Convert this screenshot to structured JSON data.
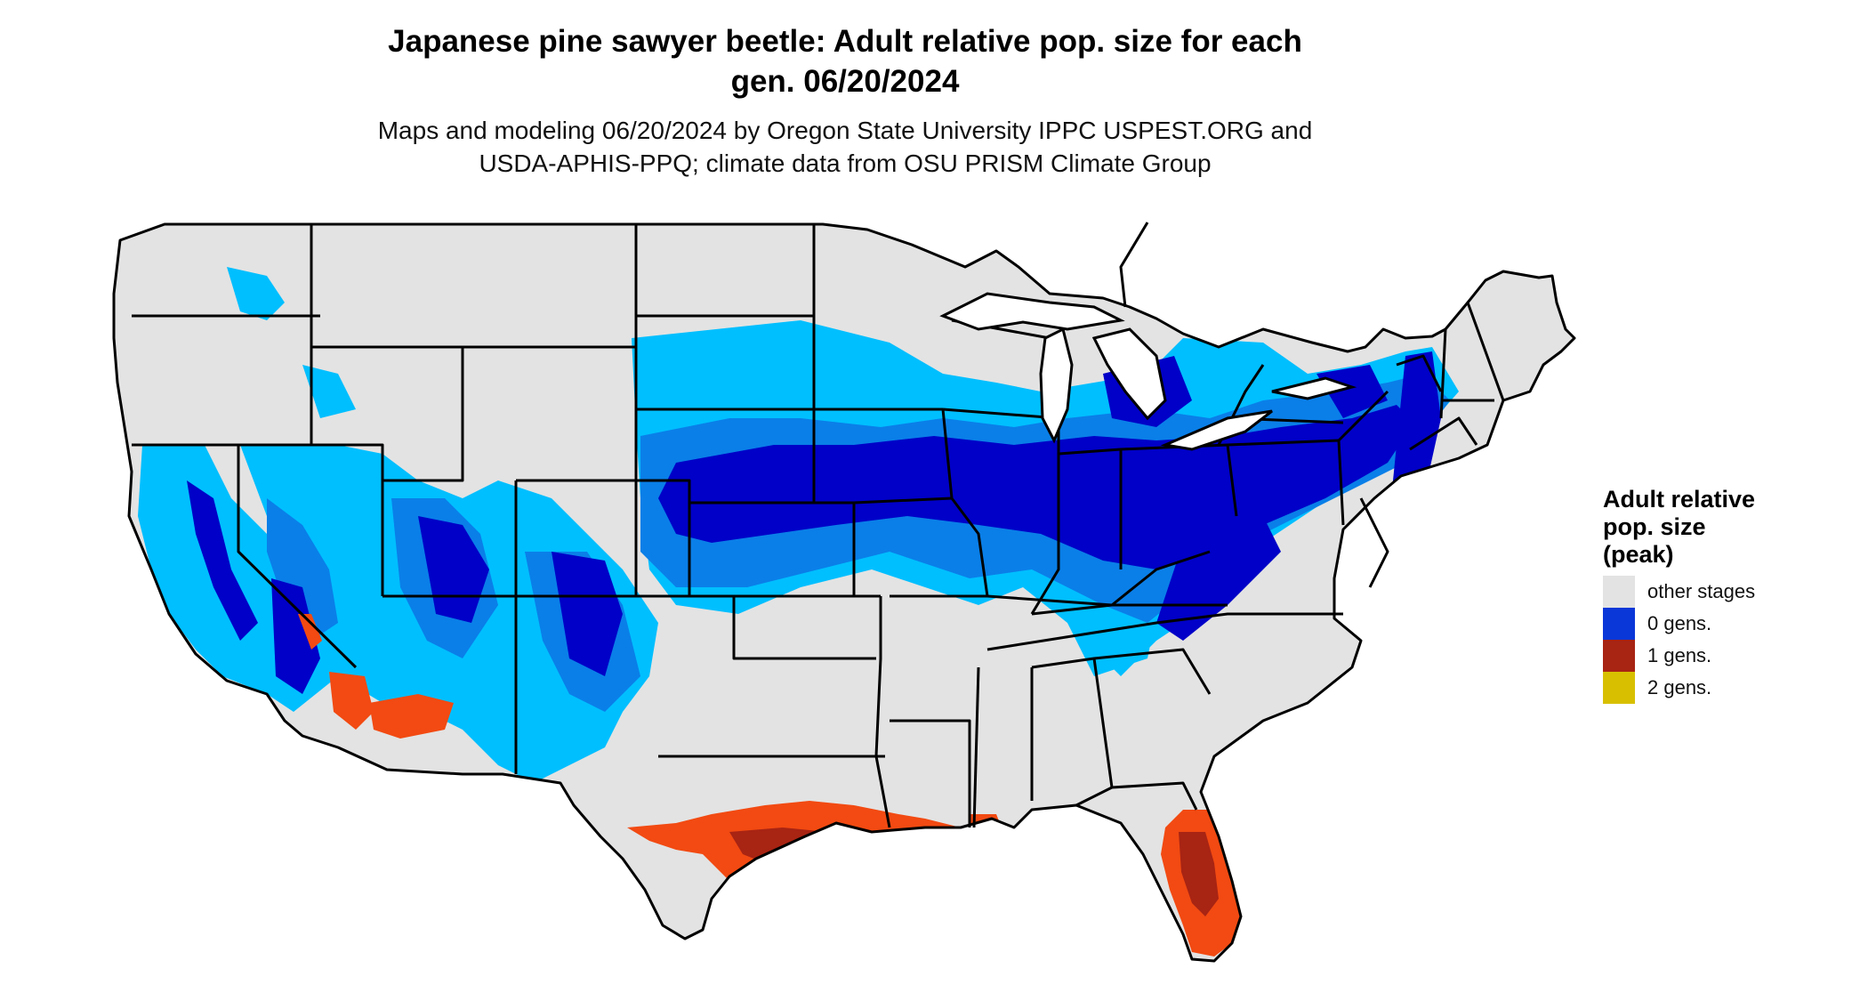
{
  "title": {
    "line1": "Japanese pine sawyer beetle: Adult relative pop. size for each",
    "line2": "gen. 06/20/2024"
  },
  "subtitle": {
    "line1": "Maps and modeling 06/20/2024 by Oregon State University IPPC USPEST.ORG and",
    "line2": "USDA-APHIS-PPQ; climate data from OSU PRISM Climate Group"
  },
  "legend": {
    "title_lines": [
      "Adult relative",
      "pop. size",
      "(peak)"
    ],
    "items": [
      {
        "label": "other stages",
        "color": "#e3e3e3"
      },
      {
        "label": "0 gens.",
        "color": "#0a37d8"
      },
      {
        "label": "1 gens.",
        "color": "#a82413"
      },
      {
        "label": "2 gens.",
        "color": "#d8c000"
      }
    ]
  },
  "palette": {
    "land": "#e3e3e3",
    "blue_light": "#00bfff",
    "blue_mid": "#0a7fe8",
    "blue_dark": "#0a37d8",
    "blue_deep": "#0000c8",
    "red_orange": "#f24a12",
    "red_dark": "#a82413",
    "border": "#000000"
  }
}
